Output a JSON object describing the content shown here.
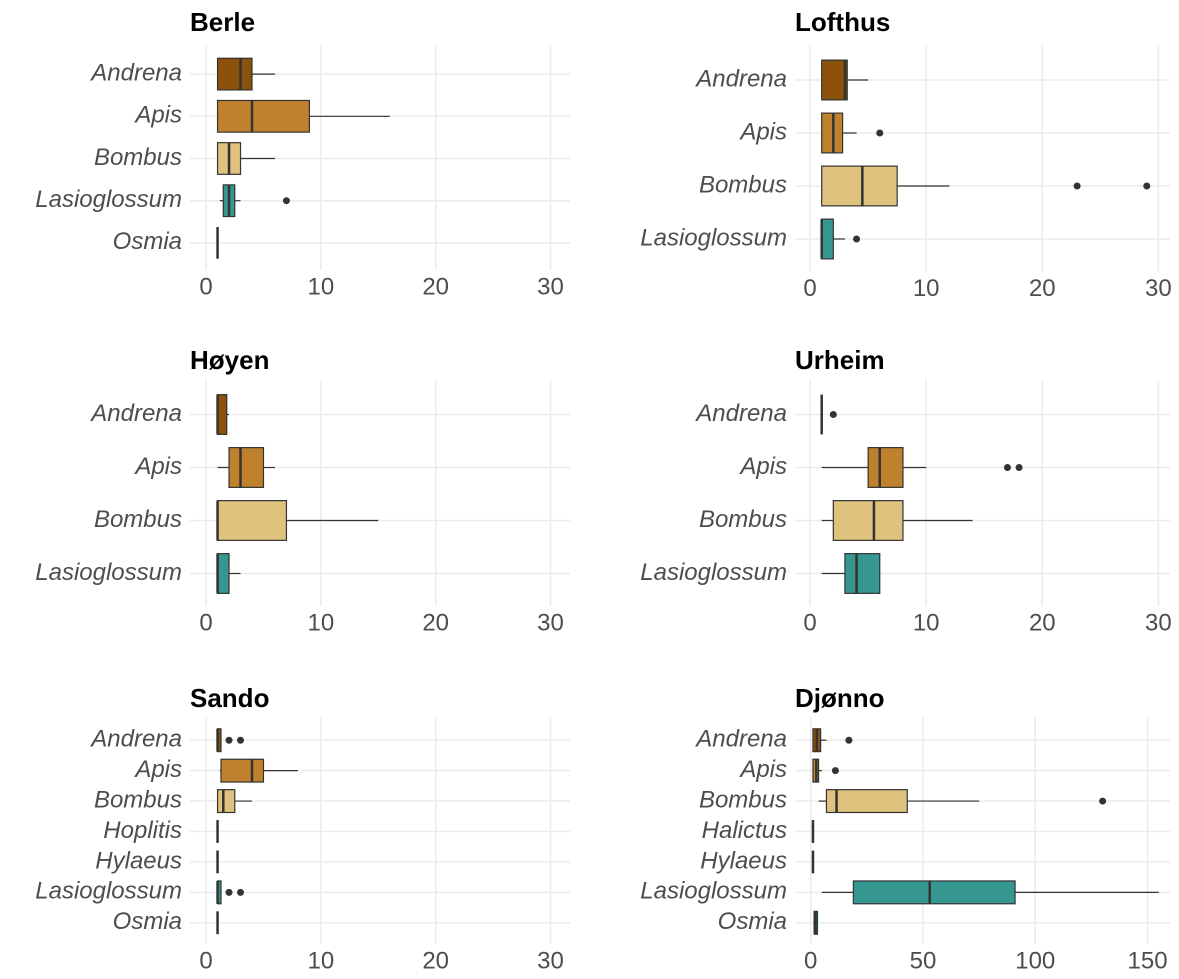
{
  "chart_data": [
    {
      "type": "box",
      "title": "Berle",
      "categories": [
        "Andrena",
        "Apis",
        "Bombus",
        "Lasioglossum",
        "Osmia"
      ],
      "colors": [
        "#8c510a",
        "#bf812d",
        "#dfc27d",
        "#35978f",
        "#01665e"
      ],
      "boxes": [
        {
          "min": 1,
          "q1": 1,
          "median": 3,
          "q3": 4,
          "max": 6
        },
        {
          "min": 1,
          "q1": 1,
          "median": 4,
          "q3": 9,
          "max": 16
        },
        {
          "min": 1,
          "q1": 1,
          "median": 2,
          "q3": 3,
          "max": 6
        },
        {
          "min": 1.2,
          "q1": 1.5,
          "median": 2,
          "q3": 2.5,
          "max": 3,
          "outliers": [
            7
          ]
        },
        {
          "min": 1,
          "q1": 1,
          "median": 1,
          "q3": 1,
          "max": 1
        }
      ],
      "xlim": [
        -1.4,
        31.7
      ],
      "xticks": [
        0,
        10,
        20,
        30
      ],
      "grid": true
    },
    {
      "type": "box",
      "title": "Lofthus",
      "categories": [
        "Andrena",
        "Apis",
        "Bombus",
        "Lasioglossum"
      ],
      "colors": [
        "#8c510a",
        "#bf812d",
        "#dfc27d",
        "#35978f"
      ],
      "boxes": [
        {
          "min": 1,
          "q1": 1,
          "median": 3,
          "q3": 3.2,
          "max": 5
        },
        {
          "min": 1,
          "q1": 1,
          "median": 2,
          "q3": 2.8,
          "max": 4,
          "outliers": [
            6
          ]
        },
        {
          "min": 1,
          "q1": 1,
          "median": 4.5,
          "q3": 7.5,
          "max": 12,
          "outliers": [
            23,
            29
          ]
        },
        {
          "min": 1,
          "q1": 1,
          "median": 1,
          "q3": 2,
          "max": 3,
          "outliers": [
            4
          ]
        }
      ],
      "xlim": [
        -1.3,
        31.0
      ],
      "xticks": [
        0,
        10,
        20,
        30
      ],
      "grid": true
    },
    {
      "type": "box",
      "title": "Høyen",
      "categories": [
        "Andrena",
        "Apis",
        "Bombus",
        "Lasioglossum"
      ],
      "colors": [
        "#8c510a",
        "#bf812d",
        "#dfc27d",
        "#35978f"
      ],
      "boxes": [
        {
          "min": 1,
          "q1": 1,
          "median": 1,
          "q3": 1.8,
          "max": 2
        },
        {
          "min": 1,
          "q1": 2,
          "median": 3,
          "q3": 5,
          "max": 6
        },
        {
          "min": 1,
          "q1": 1,
          "median": 1,
          "q3": 7,
          "max": 15
        },
        {
          "min": 1,
          "q1": 1,
          "median": 1,
          "q3": 2,
          "max": 3
        }
      ],
      "xlim": [
        -1.4,
        31.7
      ],
      "xticks": [
        0,
        10,
        20,
        30
      ],
      "grid": true
    },
    {
      "type": "box",
      "title": "Urheim",
      "categories": [
        "Andrena",
        "Apis",
        "Bombus",
        "Lasioglossum"
      ],
      "colors": [
        "#8c510a",
        "#bf812d",
        "#dfc27d",
        "#35978f"
      ],
      "boxes": [
        {
          "min": 1,
          "q1": 1,
          "median": 1,
          "q3": 1,
          "max": 1,
          "outliers": [
            2
          ]
        },
        {
          "min": 1,
          "q1": 5,
          "median": 6,
          "q3": 8,
          "max": 10,
          "outliers": [
            17,
            18
          ]
        },
        {
          "min": 1,
          "q1": 2,
          "median": 5.5,
          "q3": 8,
          "max": 14
        },
        {
          "min": 1,
          "q1": 3,
          "median": 4,
          "q3": 6,
          "max": 6
        }
      ],
      "xlim": [
        -1.3,
        31.0
      ],
      "xticks": [
        0,
        10,
        20,
        30
      ],
      "grid": true
    },
    {
      "type": "box",
      "title": "Sando",
      "categories": [
        "Andrena",
        "Apis",
        "Bombus",
        "Hoplitis",
        "Hylaeus",
        "Lasioglossum",
        "Osmia"
      ],
      "colors": [
        "#8c510a",
        "#bf812d",
        "#dfc27d",
        "#80cdc1",
        "#c7eae5",
        "#35978f",
        "#01665e"
      ],
      "boxes": [
        {
          "min": 1,
          "q1": 1,
          "median": 1,
          "q3": 1.3,
          "max": 1.3,
          "outliers": [
            2,
            3
          ]
        },
        {
          "min": 1.2,
          "q1": 1.3,
          "median": 4,
          "q3": 5,
          "max": 8
        },
        {
          "min": 1,
          "q1": 1,
          "median": 1.5,
          "q3": 2.5,
          "max": 4
        },
        {
          "min": 1,
          "q1": 1,
          "median": 1,
          "q3": 1,
          "max": 1
        },
        {
          "min": 1,
          "q1": 1,
          "median": 1,
          "q3": 1,
          "max": 1
        },
        {
          "min": 1,
          "q1": 1,
          "median": 1,
          "q3": 1.3,
          "max": 1.3,
          "outliers": [
            2,
            3
          ]
        },
        {
          "min": 1,
          "q1": 1,
          "median": 1,
          "q3": 1,
          "max": 1
        }
      ],
      "xlim": [
        -1.4,
        31.7
      ],
      "xticks": [
        0,
        10,
        20,
        30
      ],
      "grid": true
    },
    {
      "type": "box",
      "title": "Djønno",
      "categories": [
        "Andrena",
        "Apis",
        "Bombus",
        "Halictus",
        "Hylaeus",
        "Lasioglossum",
        "Osmia"
      ],
      "colors": [
        "#8c510a",
        "#bf812d",
        "#dfc27d",
        "#80cdc1",
        "#c7eae5",
        "#35978f",
        "#01665e"
      ],
      "boxes": [
        {
          "min": 1,
          "q1": 1,
          "median": 2.7,
          "q3": 4.4,
          "max": 7,
          "outliers": [
            17
          ]
        },
        {
          "min": 1,
          "q1": 1,
          "median": 2.5,
          "q3": 3.5,
          "max": 5,
          "outliers": [
            11
          ]
        },
        {
          "min": 3.5,
          "q1": 7,
          "median": 11.5,
          "q3": 43,
          "max": 75,
          "outliers": [
            130
          ]
        },
        {
          "min": 1,
          "q1": 1,
          "median": 1,
          "q3": 1,
          "max": 1
        },
        {
          "min": 1,
          "q1": 1,
          "median": 1,
          "q3": 1,
          "max": 1
        },
        {
          "min": 5,
          "q1": 19,
          "median": 53,
          "q3": 91,
          "max": 155
        },
        {
          "min": 1.5,
          "q1": 1.5,
          "median": 2,
          "q3": 3,
          "max": 3
        }
      ],
      "xlim": [
        -7,
        160
      ],
      "xticks": [
        0,
        50,
        100,
        150
      ],
      "grid": true
    }
  ]
}
